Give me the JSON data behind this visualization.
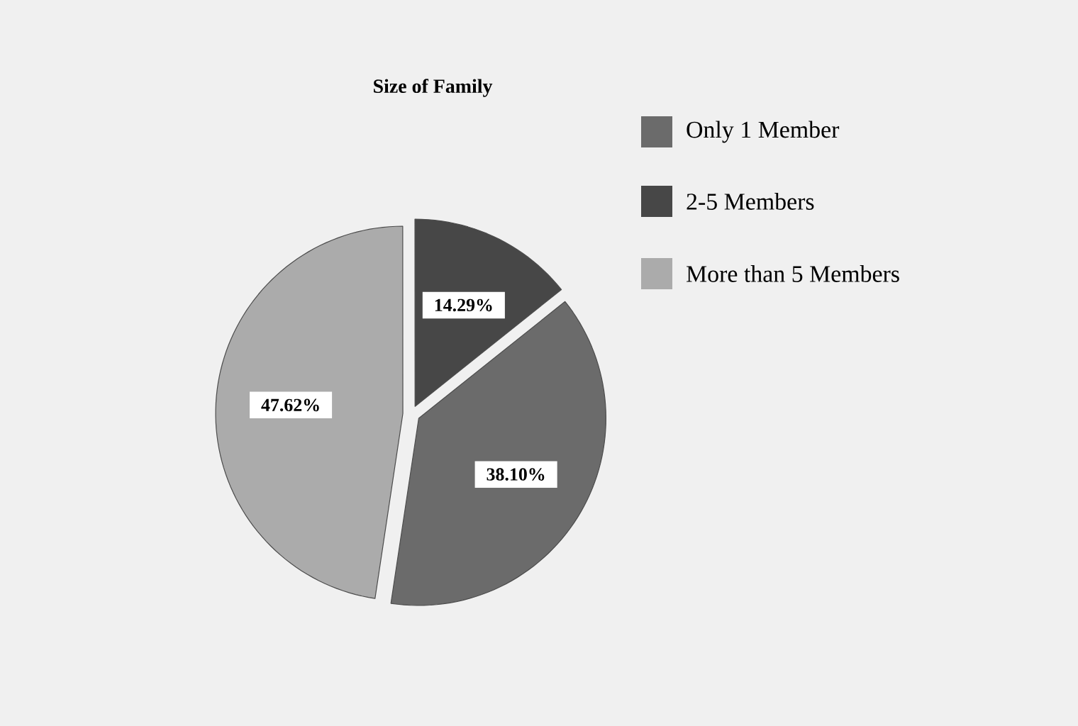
{
  "chart_data": {
    "type": "pie",
    "title": "Size of Family",
    "categories": [
      "Only 1 Member",
      "2-5 Members",
      "More than 5 Members"
    ],
    "values": [
      38.1,
      14.29,
      47.62
    ],
    "colors": [
      "#6b6b6b",
      "#474747",
      "#ababab"
    ],
    "value_labels": [
      "38.10%",
      "14.29%",
      "47.62%"
    ],
    "legend": "top right"
  }
}
